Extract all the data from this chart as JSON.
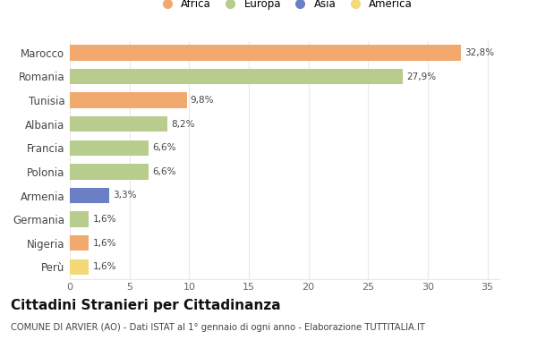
{
  "categories": [
    "Marocco",
    "Romania",
    "Tunisia",
    "Albania",
    "Francia",
    "Polonia",
    "Armenia",
    "Germania",
    "Nigeria",
    "Perù"
  ],
  "values": [
    32.8,
    27.9,
    9.8,
    8.2,
    6.6,
    6.6,
    3.3,
    1.6,
    1.6,
    1.6
  ],
  "labels": [
    "32,8%",
    "27,9%",
    "9,8%",
    "8,2%",
    "6,6%",
    "6,6%",
    "3,3%",
    "1,6%",
    "1,6%",
    "1,6%"
  ],
  "continents": [
    "Africa",
    "Europa",
    "Africa",
    "Europa",
    "Europa",
    "Europa",
    "Asia",
    "Europa",
    "Africa",
    "America"
  ],
  "colors": {
    "Africa": "#F2A96E",
    "Europa": "#B8CC8E",
    "Asia": "#6B7FC4",
    "America": "#F5D878"
  },
  "legend_order": [
    "Africa",
    "Europa",
    "Asia",
    "America"
  ],
  "title": "Cittadini Stranieri per Cittadinanza",
  "subtitle": "COMUNE DI ARVIER (AO) - Dati ISTAT al 1° gennaio di ogni anno - Elaborazione TUTTITALIA.IT",
  "xlim": [
    0,
    36
  ],
  "xticks": [
    0,
    5,
    10,
    15,
    20,
    25,
    30,
    35
  ],
  "background_color": "#ffffff",
  "grid_color": "#e8e8e8",
  "bar_height": 0.65
}
